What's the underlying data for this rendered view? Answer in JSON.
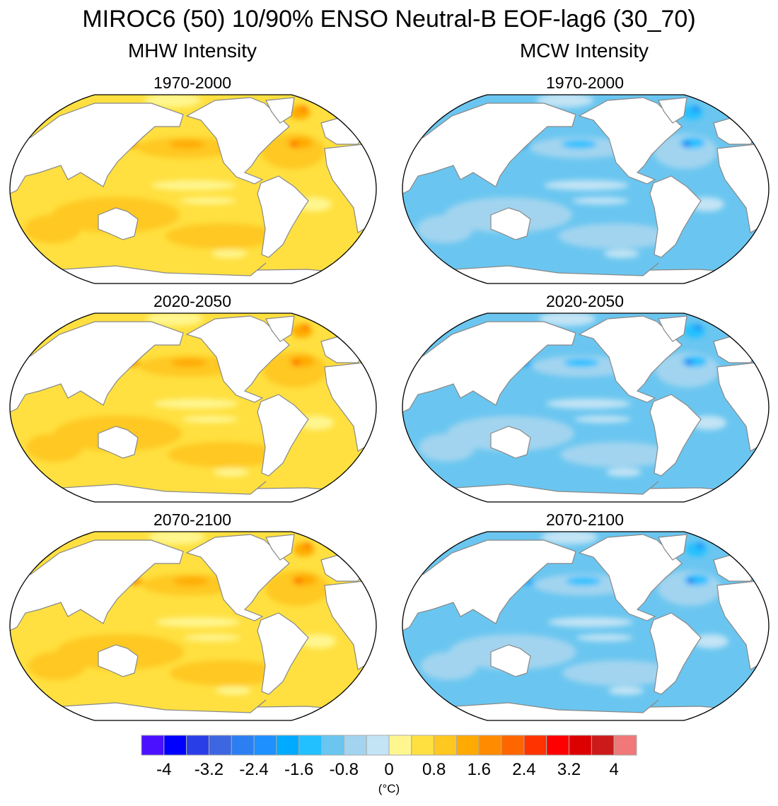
{
  "title": "MIROC6 (50) 10/90% ENSO Neutral-B EOF-lag6 (30_70)",
  "columns": [
    {
      "label": "MHW Intensity",
      "palette": [
        "#ffe040",
        "#ffc820",
        "#ffaa00",
        "#fff68f",
        "#ff3300"
      ]
    },
    {
      "label": "MCW Intensity",
      "palette": [
        "#6ac6f0",
        "#a2d4ef",
        "#22c0ff",
        "#c3e4f5",
        "#2a3ee8"
      ]
    }
  ],
  "panels": [
    {
      "column": 0,
      "title": "1970-2000"
    },
    {
      "column": 1,
      "title": "1970-2000"
    },
    {
      "column": 0,
      "title": "2020-2050"
    },
    {
      "column": 1,
      "title": "2020-2050"
    },
    {
      "column": 0,
      "title": "2070-2100"
    },
    {
      "column": 1,
      "title": "2070-2100"
    }
  ],
  "colorbar": {
    "unit": "(°C)",
    "boundaries": [
      -4,
      -3.6,
      -3.2,
      -2.8,
      -2.4,
      -2,
      -1.6,
      -1.2,
      -0.8,
      -0.4,
      0,
      0.4,
      0.8,
      1.2,
      1.6,
      2,
      2.4,
      2.8,
      3.2,
      3.6,
      4
    ],
    "labels": [
      "-4",
      "-3.2",
      "-2.4",
      "-1.6",
      "-0.8",
      "0",
      "0.8",
      "1.6",
      "2.4",
      "3.2",
      "4"
    ],
    "colors": [
      "#4b10ff",
      "#0000ff",
      "#2a3ee8",
      "#3d67e0",
      "#2b7ff0",
      "#1e90ff",
      "#00aaff",
      "#22c0ff",
      "#6ac6f0",
      "#a2d4ef",
      "#c3e4f5",
      "#fff68f",
      "#ffe040",
      "#ffc820",
      "#ffaa00",
      "#ff8c00",
      "#ff6600",
      "#ff3300",
      "#ff0000",
      "#dd0000",
      "#cc1a1a",
      "#f07878"
    ]
  }
}
